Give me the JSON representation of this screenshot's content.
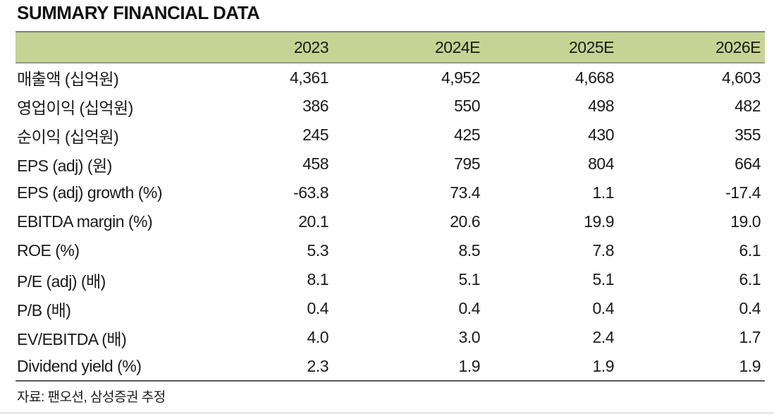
{
  "title": "SUMMARY FINANCIAL DATA",
  "source_note": "자료: 팬오션, 삼성증권 추정",
  "colors": {
    "header_bg": "#c7d394",
    "header_top_border": "#7f7f7f",
    "table_bottom_border": "#595959",
    "text": "#1a1a1a"
  },
  "chart_data": {
    "type": "table",
    "columns": [
      "",
      "2023",
      "2024E",
      "2025E",
      "2026E"
    ],
    "rows": [
      {
        "label": "매출액 (십억원)",
        "values": [
          "4,361",
          "4,952",
          "4,668",
          "4,603"
        ]
      },
      {
        "label": "영업이익 (십억원)",
        "values": [
          "386",
          "550",
          "498",
          "482"
        ]
      },
      {
        "label": "순이익 (십억원)",
        "values": [
          "245",
          "425",
          "430",
          "355"
        ]
      },
      {
        "label": "EPS (adj) (원)",
        "values": [
          "458",
          "795",
          "804",
          "664"
        ]
      },
      {
        "label": "EPS (adj) growth (%)",
        "values": [
          "-63.8",
          "73.4",
          "1.1",
          "-17.4"
        ]
      },
      {
        "label": "EBITDA margin (%)",
        "values": [
          "20.1",
          "20.6",
          "19.9",
          "19.0"
        ]
      },
      {
        "label": "ROE (%)",
        "values": [
          "5.3",
          "8.5",
          "7.8",
          "6.1"
        ]
      },
      {
        "label": "P/E (adj) (배)",
        "values": [
          "8.1",
          "5.1",
          "5.1",
          "6.1"
        ]
      },
      {
        "label": "P/B (배)",
        "values": [
          "0.4",
          "0.4",
          "0.4",
          "0.4"
        ]
      },
      {
        "label": "EV/EBITDA (배)",
        "values": [
          "4.0",
          "3.0",
          "2.4",
          "1.7"
        ]
      },
      {
        "label": "Dividend yield (%)",
        "values": [
          "2.3",
          "1.9",
          "1.9",
          "1.9"
        ]
      }
    ]
  }
}
